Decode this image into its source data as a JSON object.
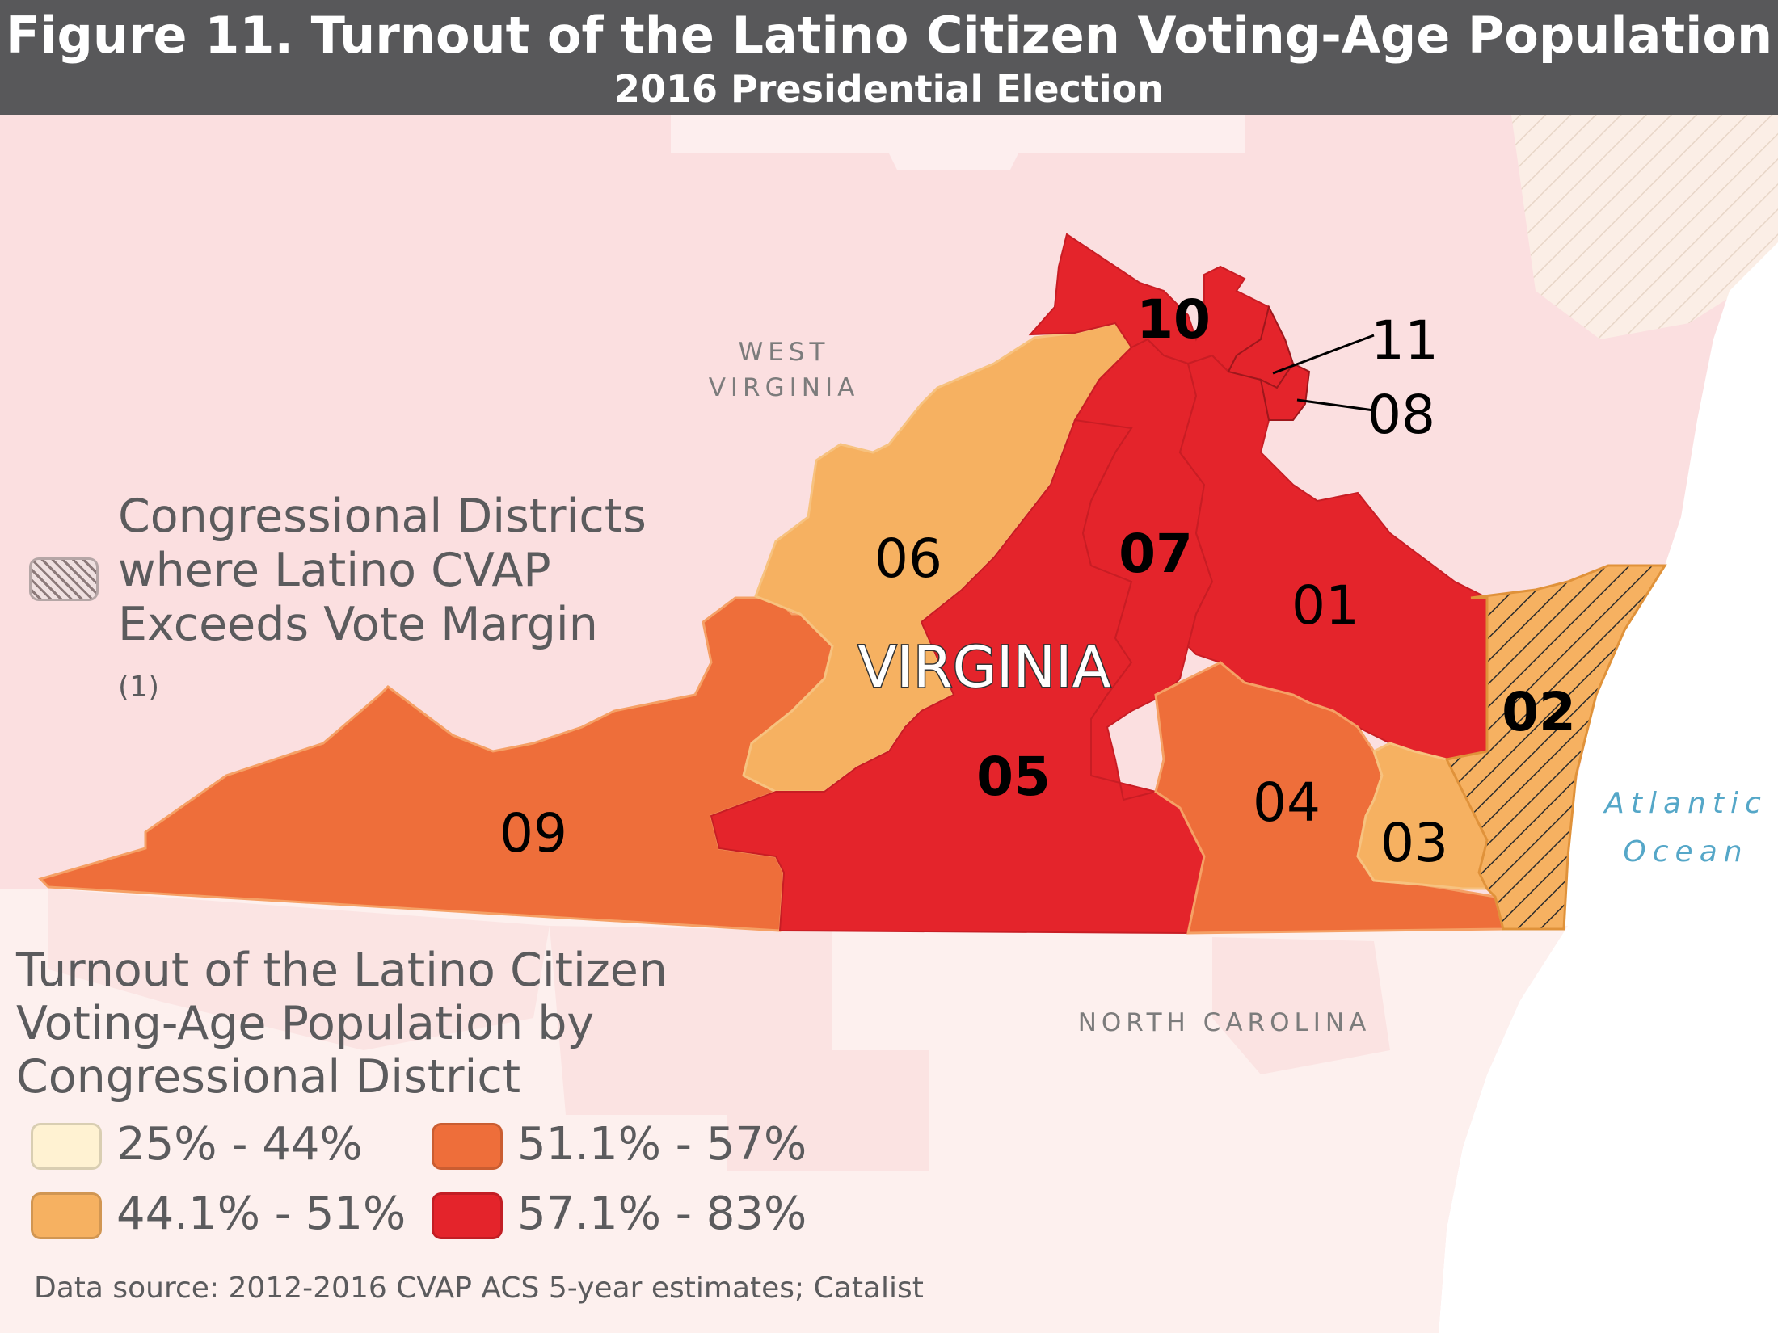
{
  "header": {
    "title": "Figure 11. Turnout of the Latino Citizen Voting-Age Population",
    "subtitle": "2016 Presidential Election"
  },
  "map": {
    "state_label": "VIRGINIA",
    "neighbors": {
      "west_virginia_line1": "WEST",
      "west_virginia_line2": "VIRGINIA",
      "north_carolina": "NORTH CAROLINA",
      "ocean_line1": "Atlantic",
      "ocean_line2": "Ocean"
    },
    "districts": [
      {
        "id": "01",
        "bin": "57.1% - 83%",
        "hatched": false,
        "bold": false
      },
      {
        "id": "02",
        "bin": "44.1% - 51%",
        "hatched": true,
        "bold": true
      },
      {
        "id": "03",
        "bin": "44.1% - 51%",
        "hatched": false,
        "bold": false
      },
      {
        "id": "04",
        "bin": "51.1% - 57%",
        "hatched": false,
        "bold": false
      },
      {
        "id": "05",
        "bin": "57.1% - 83%",
        "hatched": false,
        "bold": true
      },
      {
        "id": "06",
        "bin": "44.1% - 51%",
        "hatched": false,
        "bold": false
      },
      {
        "id": "07",
        "bin": "57.1% - 83%",
        "hatched": false,
        "bold": true
      },
      {
        "id": "08",
        "bin": "57.1% - 83%",
        "hatched": false,
        "bold": false
      },
      {
        "id": "09",
        "bin": "51.1% - 57%",
        "hatched": false,
        "bold": false
      },
      {
        "id": "10",
        "bin": "57.1% - 83%",
        "hatched": false,
        "bold": true
      },
      {
        "id": "11",
        "bin": "57.1% - 83%",
        "hatched": false,
        "bold": false
      }
    ]
  },
  "hatch_note": {
    "text": "Congressional Districts where Latino CVAP Exceeds Vote Margin",
    "ref": "(1)"
  },
  "legend": {
    "title": "Turnout of the Latino Citizen Voting-Age Population by Congressional District",
    "items": [
      {
        "label": "25% - 44%",
        "color": "#fff2d2"
      },
      {
        "label": "44.1% - 51%",
        "color": "#f6b161"
      },
      {
        "label": "51.1% - 57%",
        "color": "#ee6e3a"
      },
      {
        "label": "57.1% - 83%",
        "color": "#e4242b"
      }
    ]
  },
  "source": "Data source: 2012-2016 CVAP ACS 5-year estimates; Catalist",
  "colors": {
    "background": "#fbdfe0",
    "header": "#58585a",
    "ocean": "#ffffff",
    "nc": "#fdf0ee"
  }
}
